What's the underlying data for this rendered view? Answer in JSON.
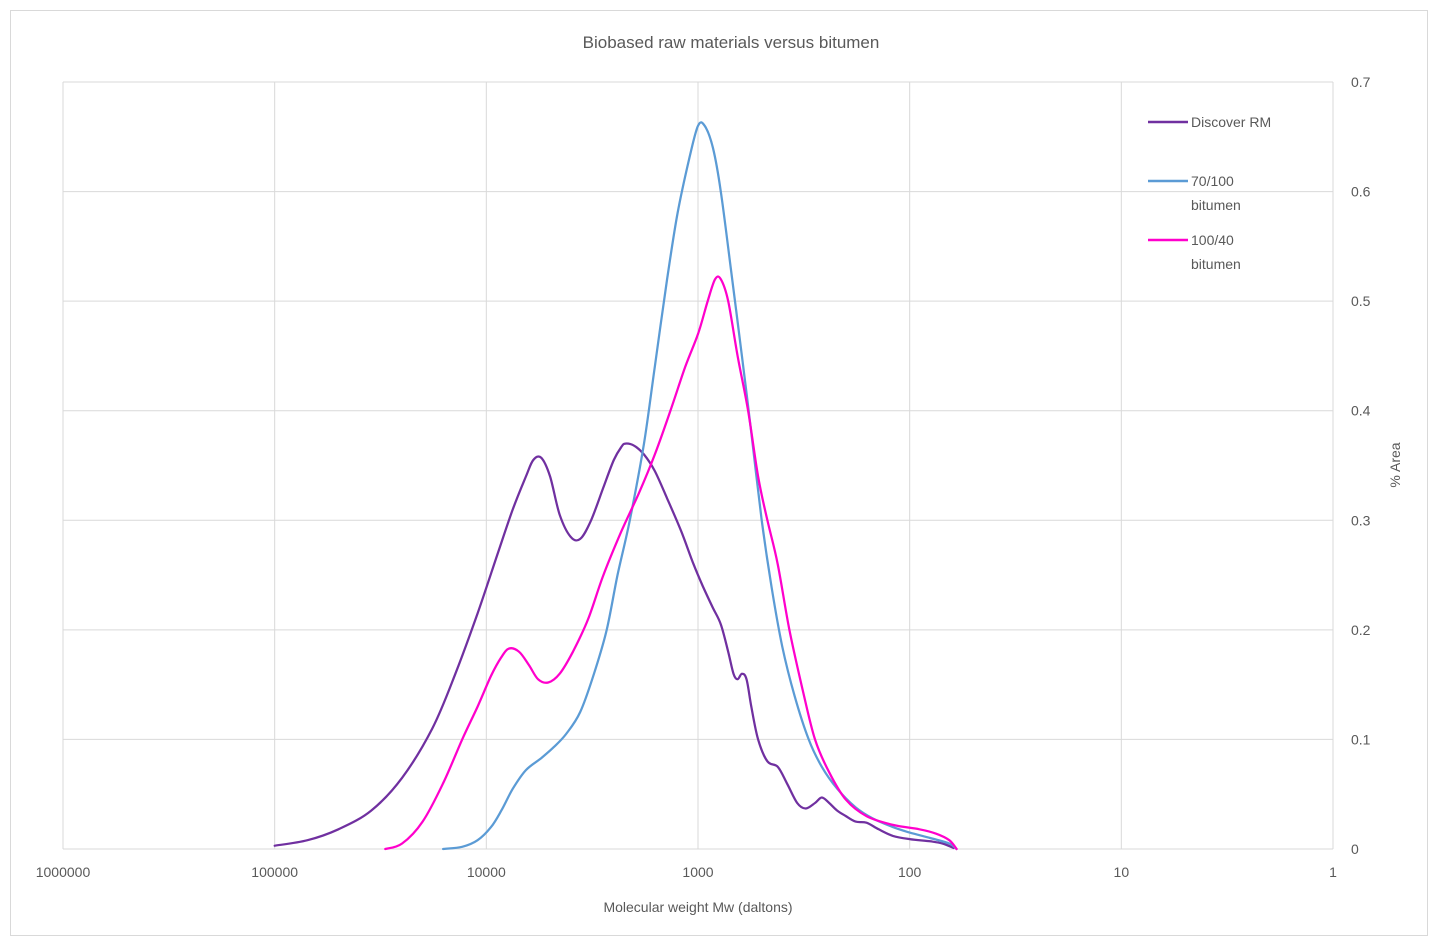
{
  "chart_data": {
    "type": "line",
    "title": "Biobased raw materials versus bitumen",
    "xlabel": "Molecular weight Mw (daltons)",
    "ylabel": "% Area",
    "x_scale": "log",
    "x_reversed": true,
    "xlim": [
      1000000,
      1
    ],
    "ylim": [
      0,
      0.7
    ],
    "x_ticks": [
      "1000000",
      "100000",
      "10000",
      "1000",
      "100",
      "10",
      "1"
    ],
    "y_ticks": [
      "0",
      "0.1",
      "0.2",
      "0.3",
      "0.4",
      "0.5",
      "0.6",
      "0.7"
    ],
    "grid": true,
    "legend_position": "top-right",
    "series": [
      {
        "name": "Discover RM",
        "color": "#7030a0",
        "points": [
          [
            100000,
            0.003
          ],
          [
            70000,
            0.008
          ],
          [
            50000,
            0.018
          ],
          [
            35000,
            0.035
          ],
          [
            25000,
            0.065
          ],
          [
            18000,
            0.11
          ],
          [
            14000,
            0.16
          ],
          [
            11000,
            0.215
          ],
          [
            9000,
            0.265
          ],
          [
            7500,
            0.31
          ],
          [
            6500,
            0.34
          ],
          [
            6000,
            0.355
          ],
          [
            5500,
            0.357
          ],
          [
            5000,
            0.34
          ],
          [
            4500,
            0.305
          ],
          [
            4000,
            0.285
          ],
          [
            3600,
            0.283
          ],
          [
            3200,
            0.3
          ],
          [
            2800,
            0.33
          ],
          [
            2500,
            0.355
          ],
          [
            2300,
            0.367
          ],
          [
            2200,
            0.37
          ],
          [
            2000,
            0.368
          ],
          [
            1800,
            0.36
          ],
          [
            1600,
            0.345
          ],
          [
            1400,
            0.32
          ],
          [
            1200,
            0.29
          ],
          [
            1050,
            0.26
          ],
          [
            950,
            0.24
          ],
          [
            850,
            0.22
          ],
          [
            780,
            0.205
          ],
          [
            720,
            0.18
          ],
          [
            680,
            0.16
          ],
          [
            650,
            0.155
          ],
          [
            620,
            0.16
          ],
          [
            590,
            0.155
          ],
          [
            560,
            0.13
          ],
          [
            520,
            0.1
          ],
          [
            470,
            0.08
          ],
          [
            420,
            0.075
          ],
          [
            380,
            0.06
          ],
          [
            340,
            0.042
          ],
          [
            310,
            0.037
          ],
          [
            280,
            0.042
          ],
          [
            260,
            0.047
          ],
          [
            240,
            0.042
          ],
          [
            220,
            0.035
          ],
          [
            200,
            0.03
          ],
          [
            180,
            0.025
          ],
          [
            160,
            0.024
          ],
          [
            140,
            0.018
          ],
          [
            120,
            0.012
          ],
          [
            100,
            0.009
          ],
          [
            80,
            0.007
          ],
          [
            70,
            0.005
          ],
          [
            62,
            0.001
          ]
        ]
      },
      {
        "name": "70/100 bitumen",
        "color": "#5b9bd5",
        "points": [
          [
            16000,
            0.0
          ],
          [
            13000,
            0.002
          ],
          [
            11000,
            0.008
          ],
          [
            9500,
            0.02
          ],
          [
            8500,
            0.035
          ],
          [
            7500,
            0.055
          ],
          [
            6500,
            0.072
          ],
          [
            5500,
            0.083
          ],
          [
            4800,
            0.093
          ],
          [
            4200,
            0.105
          ],
          [
            3600,
            0.125
          ],
          [
            3100,
            0.16
          ],
          [
            2700,
            0.2
          ],
          [
            2400,
            0.25
          ],
          [
            2100,
            0.3
          ],
          [
            1800,
            0.37
          ],
          [
            1600,
            0.44
          ],
          [
            1400,
            0.52
          ],
          [
            1250,
            0.58
          ],
          [
            1100,
            0.63
          ],
          [
            1000,
            0.66
          ],
          [
            930,
            0.66
          ],
          [
            850,
            0.64
          ],
          [
            780,
            0.6
          ],
          [
            700,
            0.53
          ],
          [
            620,
            0.45
          ],
          [
            560,
            0.38
          ],
          [
            500,
            0.3
          ],
          [
            450,
            0.24
          ],
          [
            400,
            0.185
          ],
          [
            350,
            0.14
          ],
          [
            300,
            0.1
          ],
          [
            260,
            0.075
          ],
          [
            220,
            0.055
          ],
          [
            180,
            0.038
          ],
          [
            150,
            0.028
          ],
          [
            120,
            0.02
          ],
          [
            100,
            0.015
          ],
          [
            80,
            0.01
          ],
          [
            65,
            0.005
          ],
          [
            60,
            0.0
          ]
        ]
      },
      {
        "name": "100/40 bitumen",
        "color": "#ff00cc",
        "points": [
          [
            30000,
            0.0
          ],
          [
            25000,
            0.005
          ],
          [
            20000,
            0.025
          ],
          [
            16000,
            0.06
          ],
          [
            13000,
            0.1
          ],
          [
            11000,
            0.13
          ],
          [
            9500,
            0.158
          ],
          [
            8500,
            0.175
          ],
          [
            7800,
            0.183
          ],
          [
            7000,
            0.18
          ],
          [
            6300,
            0.168
          ],
          [
            5700,
            0.155
          ],
          [
            5100,
            0.152
          ],
          [
            4500,
            0.16
          ],
          [
            3900,
            0.18
          ],
          [
            3300,
            0.21
          ],
          [
            2800,
            0.25
          ],
          [
            2300,
            0.29
          ],
          [
            1900,
            0.325
          ],
          [
            1600,
            0.36
          ],
          [
            1350,
            0.4
          ],
          [
            1150,
            0.44
          ],
          [
            1000,
            0.47
          ],
          [
            900,
            0.5
          ],
          [
            830,
            0.52
          ],
          [
            780,
            0.52
          ],
          [
            720,
            0.5
          ],
          [
            650,
            0.45
          ],
          [
            580,
            0.4
          ],
          [
            520,
            0.34
          ],
          [
            470,
            0.3
          ],
          [
            420,
            0.26
          ],
          [
            370,
            0.2
          ],
          [
            320,
            0.145
          ],
          [
            280,
            0.1
          ],
          [
            240,
            0.07
          ],
          [
            200,
            0.045
          ],
          [
            160,
            0.03
          ],
          [
            120,
            0.022
          ],
          [
            90,
            0.018
          ],
          [
            75,
            0.014
          ],
          [
            65,
            0.008
          ],
          [
            60,
            0.0
          ]
        ]
      }
    ]
  }
}
